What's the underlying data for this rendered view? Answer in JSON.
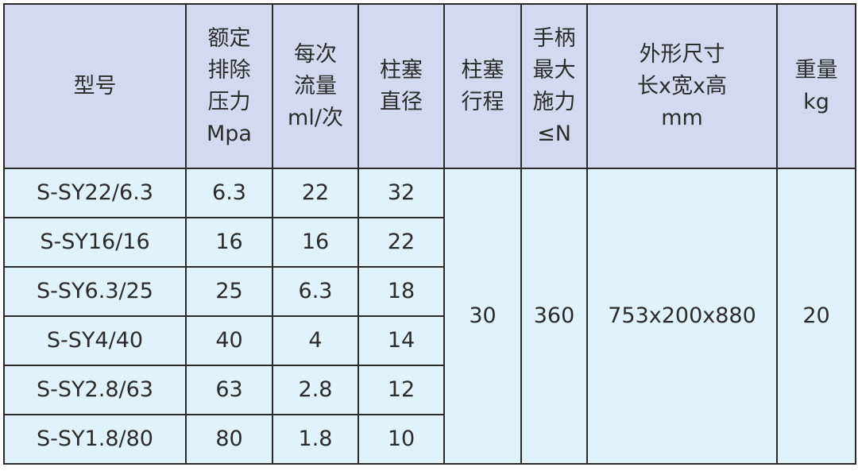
{
  "header": [
    [
      "型号"
    ],
    [
      "额定",
      "排除",
      "压力",
      "Mpa"
    ],
    [
      "每次",
      "流量",
      "ml/次"
    ],
    [
      "柱塞",
      "直径"
    ],
    [
      "柱塞",
      "行程"
    ],
    [
      "手柄",
      "最大",
      "施力",
      "≤N"
    ],
    [
      "外形尺寸",
      "长x宽x高",
      "mm"
    ],
    [
      "重量",
      "kg"
    ]
  ],
  "rows": [
    [
      "S-SY22/6.3",
      "6.3",
      "22",
      "32"
    ],
    [
      "S-SY16/16",
      "16",
      "16",
      "22"
    ],
    [
      "S-SY6.3/25",
      "25",
      "6.3",
      "18"
    ],
    [
      "S-SY4/40",
      "40",
      "4",
      "14"
    ],
    [
      "S-SY2.8/63",
      "63",
      "2.8",
      "12"
    ],
    [
      "S-SY1.8/80",
      "80",
      "1.8",
      "10"
    ]
  ],
  "shared": {
    "stroke": "30",
    "force": "360",
    "dimensions": "753x200x880",
    "weight": "20"
  },
  "colors": {
    "header_bg": "#d5d9ef",
    "body_bg": "#e0f3fc",
    "border": "#2a2a2a"
  }
}
